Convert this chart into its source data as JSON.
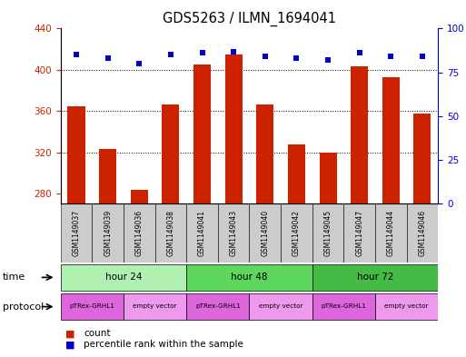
{
  "title": "GDS5263 / ILMN_1694041",
  "samples": [
    "GSM1149037",
    "GSM1149039",
    "GSM1149036",
    "GSM1149038",
    "GSM1149041",
    "GSM1149043",
    "GSM1149040",
    "GSM1149042",
    "GSM1149045",
    "GSM1149047",
    "GSM1149044",
    "GSM1149046"
  ],
  "counts": [
    365,
    323,
    284,
    366,
    405,
    415,
    366,
    328,
    320,
    403,
    393,
    358
  ],
  "percentiles": [
    85,
    83,
    80,
    85,
    86,
    87,
    84,
    83,
    82,
    86,
    84,
    84
  ],
  "ylim_left": [
    270,
    440
  ],
  "ylim_right": [
    0,
    100
  ],
  "yticks_left": [
    280,
    320,
    360,
    400,
    440
  ],
  "yticks_right": [
    0,
    25,
    50,
    75,
    100
  ],
  "time_groups": [
    {
      "label": "hour 24",
      "start": 0,
      "end": 4
    },
    {
      "label": "hour 48",
      "start": 4,
      "end": 8
    },
    {
      "label": "hour 72",
      "start": 8,
      "end": 12
    }
  ],
  "time_colors": [
    "#b0f0b0",
    "#5cd65c",
    "#44bb44"
  ],
  "protocol_groups": [
    {
      "label": "pTRex-GRHL1",
      "start": 0,
      "end": 2
    },
    {
      "label": "empty vector",
      "start": 2,
      "end": 4
    },
    {
      "label": "pTRex-GRHL1",
      "start": 4,
      "end": 6
    },
    {
      "label": "empty vector",
      "start": 6,
      "end": 8
    },
    {
      "label": "pTRex-GRHL1",
      "start": 8,
      "end": 10
    },
    {
      "label": "empty vector",
      "start": 10,
      "end": 12
    }
  ],
  "proto_colors": [
    "#dd66dd",
    "#ee99ee"
  ],
  "bar_color": "#cc2200",
  "dot_color": "#0000cc",
  "bar_width": 0.55,
  "background_color": "#ffffff",
  "left_axis_color": "#cc2200",
  "right_axis_color": "#0000cc",
  "sample_bg": "#cccccc",
  "label_time": "time",
  "label_protocol": "protocol",
  "legend_count": "count",
  "legend_percentile": "percentile rank within the sample"
}
